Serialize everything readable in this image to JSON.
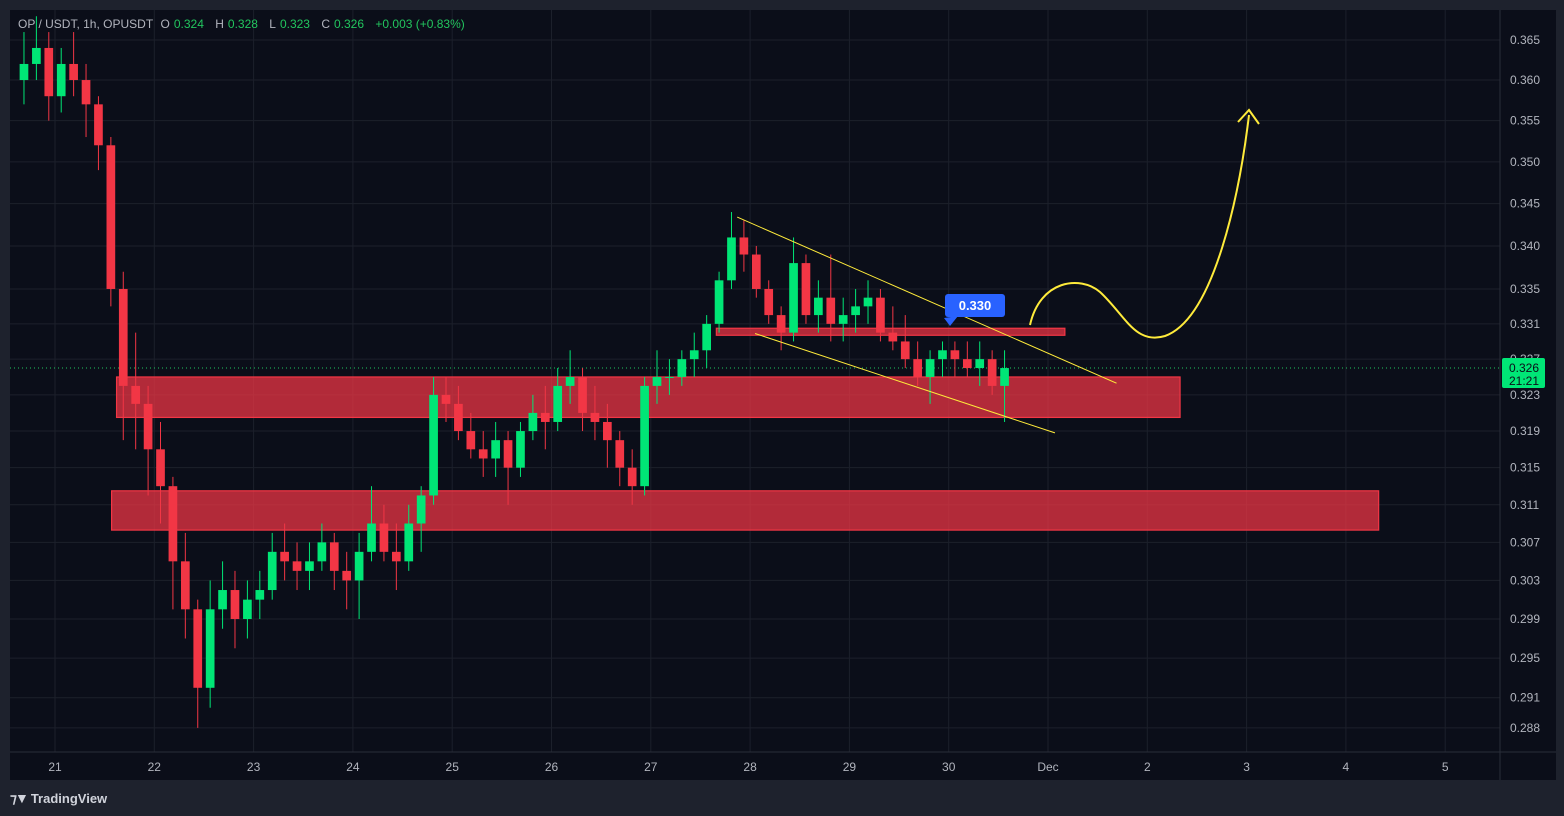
{
  "header": {
    "symbol": "OP / USDT, 1h, OPUSDT",
    "o_label": "O",
    "o": "0.324",
    "h_label": "H",
    "h": "0.328",
    "l_label": "L",
    "l": "0.323",
    "c_label": "C",
    "c": "0.326",
    "change": "+0.003 (+0.83%)"
  },
  "brand": "TradingView",
  "colors": {
    "up": "#089981",
    "up_bright": "#00e676",
    "down": "#f23645",
    "zone": "#f23645",
    "annotation": "#ffeb3b",
    "price_label": "#2962ff"
  },
  "chart_data": {
    "type": "candlestick",
    "scale": "log",
    "yticks": [
      "0.365",
      "0.360",
      "0.355",
      "0.350",
      "0.345",
      "0.340",
      "0.335",
      "0.331",
      "0.327",
      "0.323",
      "0.319",
      "0.315",
      "0.311",
      "0.307",
      "0.303",
      "0.299",
      "0.295",
      "0.291",
      "0.288"
    ],
    "xticks": [
      {
        "label": "21",
        "day": 21
      },
      {
        "label": "22",
        "day": 22
      },
      {
        "label": "23",
        "day": 23
      },
      {
        "label": "24",
        "day": 24
      },
      {
        "label": "25",
        "day": 25
      },
      {
        "label": "26",
        "day": 26
      },
      {
        "label": "27",
        "day": 27
      },
      {
        "label": "28",
        "day": 28
      },
      {
        "label": "29",
        "day": 29
      },
      {
        "label": "30",
        "day": 30
      },
      {
        "label": "Dec",
        "day": 31
      },
      {
        "label": "2",
        "day": 32
      },
      {
        "label": "3",
        "day": 33
      },
      {
        "label": "4",
        "day": 34
      },
      {
        "label": "5",
        "day": 35
      }
    ],
    "current_price": {
      "value": "0.326",
      "countdown": "21:21",
      "price": 0.326
    },
    "candles_columns": [
      "day",
      "hour",
      "open",
      "high",
      "low",
      "close"
    ],
    "candles": [
      [
        20,
        15,
        0.36,
        0.366,
        0.357,
        0.362
      ],
      [
        20,
        18,
        0.362,
        0.368,
        0.36,
        0.364
      ],
      [
        20,
        21,
        0.364,
        0.366,
        0.355,
        0.358
      ],
      [
        21,
        0,
        0.358,
        0.364,
        0.356,
        0.362
      ],
      [
        21,
        3,
        0.362,
        0.366,
        0.358,
        0.36
      ],
      [
        21,
        6,
        0.36,
        0.362,
        0.353,
        0.357
      ],
      [
        21,
        9,
        0.357,
        0.358,
        0.349,
        0.352
      ],
      [
        21,
        12,
        0.352,
        0.353,
        0.333,
        0.335
      ],
      [
        21,
        15,
        0.335,
        0.337,
        0.318,
        0.324
      ],
      [
        21,
        18,
        0.324,
        0.33,
        0.317,
        0.322
      ],
      [
        21,
        21,
        0.322,
        0.324,
        0.312,
        0.317
      ],
      [
        22,
        0,
        0.317,
        0.32,
        0.309,
        0.313
      ],
      [
        22,
        3,
        0.313,
        0.314,
        0.3,
        0.305
      ],
      [
        22,
        6,
        0.305,
        0.308,
        0.297,
        0.3
      ],
      [
        22,
        9,
        0.3,
        0.301,
        0.288,
        0.292
      ],
      [
        22,
        12,
        0.292,
        0.303,
        0.29,
        0.3
      ],
      [
        22,
        15,
        0.3,
        0.305,
        0.298,
        0.302
      ],
      [
        22,
        18,
        0.302,
        0.304,
        0.296,
        0.299
      ],
      [
        22,
        21,
        0.299,
        0.303,
        0.297,
        0.301
      ],
      [
        23,
        0,
        0.301,
        0.304,
        0.299,
        0.302
      ],
      [
        23,
        3,
        0.302,
        0.308,
        0.301,
        0.306
      ],
      [
        23,
        6,
        0.306,
        0.309,
        0.303,
        0.305
      ],
      [
        23,
        9,
        0.305,
        0.307,
        0.302,
        0.304
      ],
      [
        23,
        12,
        0.304,
        0.307,
        0.302,
        0.305
      ],
      [
        23,
        15,
        0.305,
        0.309,
        0.304,
        0.307
      ],
      [
        23,
        18,
        0.307,
        0.308,
        0.302,
        0.304
      ],
      [
        23,
        21,
        0.304,
        0.306,
        0.3,
        0.303
      ],
      [
        24,
        0,
        0.303,
        0.308,
        0.299,
        0.306
      ],
      [
        24,
        3,
        0.306,
        0.313,
        0.305,
        0.309
      ],
      [
        24,
        6,
        0.309,
        0.311,
        0.305,
        0.306
      ],
      [
        24,
        9,
        0.306,
        0.309,
        0.302,
        0.305
      ],
      [
        24,
        12,
        0.305,
        0.311,
        0.304,
        0.309
      ],
      [
        24,
        15,
        0.309,
        0.313,
        0.306,
        0.312
      ],
      [
        24,
        18,
        0.312,
        0.325,
        0.311,
        0.323
      ],
      [
        24,
        21,
        0.323,
        0.325,
        0.32,
        0.322
      ],
      [
        25,
        0,
        0.322,
        0.324,
        0.318,
        0.319
      ],
      [
        25,
        3,
        0.319,
        0.321,
        0.316,
        0.317
      ],
      [
        25,
        6,
        0.317,
        0.319,
        0.314,
        0.316
      ],
      [
        25,
        9,
        0.316,
        0.32,
        0.314,
        0.318
      ],
      [
        25,
        12,
        0.318,
        0.319,
        0.311,
        0.315
      ],
      [
        25,
        15,
        0.315,
        0.32,
        0.314,
        0.319
      ],
      [
        25,
        18,
        0.319,
        0.323,
        0.318,
        0.321
      ],
      [
        25,
        21,
        0.321,
        0.324,
        0.317,
        0.32
      ],
      [
        26,
        0,
        0.32,
        0.326,
        0.319,
        0.324
      ],
      [
        26,
        3,
        0.324,
        0.328,
        0.322,
        0.325
      ],
      [
        26,
        6,
        0.325,
        0.326,
        0.319,
        0.321
      ],
      [
        26,
        9,
        0.321,
        0.324,
        0.318,
        0.32
      ],
      [
        26,
        12,
        0.32,
        0.322,
        0.315,
        0.318
      ],
      [
        26,
        15,
        0.318,
        0.319,
        0.313,
        0.315
      ],
      [
        26,
        18,
        0.315,
        0.317,
        0.311,
        0.313
      ],
      [
        26,
        21,
        0.313,
        0.325,
        0.312,
        0.324
      ],
      [
        27,
        0,
        0.324,
        0.328,
        0.322,
        0.325
      ],
      [
        27,
        3,
        0.325,
        0.327,
        0.323,
        0.325
      ],
      [
        27,
        6,
        0.325,
        0.328,
        0.324,
        0.327
      ],
      [
        27,
        9,
        0.327,
        0.33,
        0.325,
        0.328
      ],
      [
        27,
        12,
        0.328,
        0.332,
        0.326,
        0.331
      ],
      [
        27,
        15,
        0.331,
        0.337,
        0.33,
        0.336
      ],
      [
        27,
        18,
        0.336,
        0.344,
        0.335,
        0.341
      ],
      [
        27,
        21,
        0.341,
        0.343,
        0.337,
        0.339
      ],
      [
        28,
        0,
        0.339,
        0.34,
        0.334,
        0.335
      ],
      [
        28,
        3,
        0.335,
        0.336,
        0.331,
        0.332
      ],
      [
        28,
        6,
        0.332,
        0.333,
        0.328,
        0.33
      ],
      [
        28,
        9,
        0.33,
        0.341,
        0.329,
        0.338
      ],
      [
        28,
        12,
        0.338,
        0.339,
        0.331,
        0.332
      ],
      [
        28,
        15,
        0.332,
        0.336,
        0.33,
        0.334
      ],
      [
        28,
        18,
        0.334,
        0.339,
        0.329,
        0.331
      ],
      [
        28,
        21,
        0.331,
        0.334,
        0.329,
        0.332
      ],
      [
        29,
        0,
        0.332,
        0.335,
        0.33,
        0.333
      ],
      [
        29,
        3,
        0.333,
        0.336,
        0.331,
        0.334
      ],
      [
        29,
        6,
        0.334,
        0.335,
        0.329,
        0.33
      ],
      [
        29,
        9,
        0.33,
        0.333,
        0.328,
        0.329
      ],
      [
        29,
        12,
        0.329,
        0.332,
        0.326,
        0.327
      ],
      [
        29,
        15,
        0.327,
        0.329,
        0.324,
        0.325
      ],
      [
        29,
        18,
        0.325,
        0.328,
        0.322,
        0.327
      ],
      [
        29,
        21,
        0.327,
        0.329,
        0.325,
        0.328
      ],
      [
        30,
        0,
        0.328,
        0.329,
        0.325,
        0.327
      ],
      [
        30,
        3,
        0.327,
        0.329,
        0.325,
        0.326
      ],
      [
        30,
        6,
        0.326,
        0.329,
        0.324,
        0.327
      ],
      [
        30,
        9,
        0.327,
        0.328,
        0.323,
        0.324
      ],
      [
        30,
        12,
        0.324,
        0.328,
        0.32,
        0.326
      ]
    ],
    "zones": [
      {
        "from_day": 21.62,
        "to_day": 32.33,
        "top": 0.325,
        "bottom": 0.3205
      },
      {
        "from_day": 21.57,
        "to_day": 34.33,
        "top": 0.3125,
        "bottom": 0.3083
      },
      {
        "from_day": 27.66,
        "to_day": 31.17,
        "top": 0.3305,
        "bottom": 0.3297
      }
    ],
    "trendlines": [
      {
        "from": [
          27.87,
          0.3434
        ],
        "to": [
          31.69,
          0.3243
        ]
      },
      {
        "from": [
          28.05,
          0.3299
        ],
        "to": [
          31.07,
          0.3188
        ]
      }
    ],
    "price_callout": {
      "label": "0.330"
    }
  }
}
